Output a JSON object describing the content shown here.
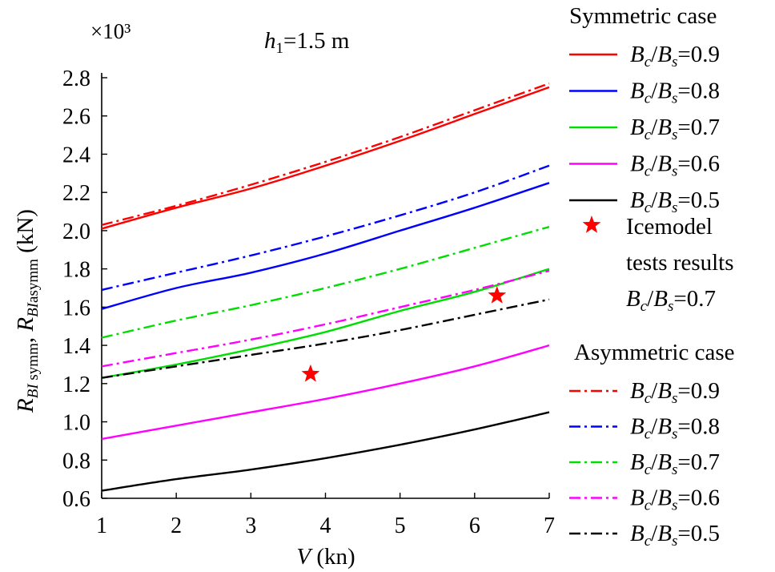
{
  "chart_data": {
    "type": "line",
    "title": "h1=1.5 m",
    "title_parts": {
      "sym": "h",
      "sub": "1",
      "rest": "=1.5 m"
    },
    "scale_label": "×10³",
    "xlabel": "V (kn)",
    "xlabel_parts": {
      "var": "V",
      "unit": " (kn)"
    },
    "ylabel": "R_BI symm, R_BI asymm (kN)",
    "ylabel_parts": {
      "r1": "R",
      "sub1": "BI",
      "sub1b": " symm",
      "comma": ", ",
      "r2": "R",
      "sub2": "BI",
      "sub2b": "asymm",
      "unit": " (kN)"
    },
    "xlim": [
      1,
      7
    ],
    "ylim": [
      0.6,
      2.8
    ],
    "xticks": [
      "1",
      "2",
      "3",
      "4",
      "5",
      "6",
      "7"
    ],
    "yticks": [
      "0.6",
      "0.8",
      "1.0",
      "1.2",
      "1.4",
      "1.6",
      "1.8",
      "2.0",
      "2.2",
      "2.4",
      "2.6",
      "2.8"
    ],
    "x": [
      1,
      2,
      3,
      4,
      5,
      6,
      7
    ],
    "series": [
      {
        "name": "Symmetric Bc/Bs=0.9",
        "group": "symmetric",
        "ratio": "0.9",
        "color": "#ff0000",
        "dash": "solid",
        "values": [
          2.01,
          2.12,
          2.22,
          2.34,
          2.47,
          2.61,
          2.75
        ]
      },
      {
        "name": "Symmetric Bc/Bs=0.8",
        "group": "symmetric",
        "ratio": "0.8",
        "color": "#0000ff",
        "dash": "solid",
        "values": [
          1.59,
          1.7,
          1.78,
          1.88,
          2.0,
          2.12,
          2.25
        ]
      },
      {
        "name": "Symmetric Bc/Bs=0.7",
        "group": "symmetric",
        "ratio": "0.7",
        "color": "#00dd00",
        "dash": "solid",
        "values": [
          1.23,
          1.3,
          1.38,
          1.47,
          1.58,
          1.68,
          1.8
        ]
      },
      {
        "name": "Symmetric Bc/Bs=0.6",
        "group": "symmetric",
        "ratio": "0.6",
        "color": "#ff00ff",
        "dash": "solid",
        "values": [
          0.91,
          0.98,
          1.05,
          1.12,
          1.2,
          1.29,
          1.4
        ]
      },
      {
        "name": "Symmetric Bc/Bs=0.5",
        "group": "symmetric",
        "ratio": "0.5",
        "color": "#000000",
        "dash": "solid",
        "values": [
          0.64,
          0.7,
          0.75,
          0.81,
          0.88,
          0.96,
          1.05
        ]
      },
      {
        "name": "Asymmetric Bc/Bs=0.9",
        "group": "asymmetric",
        "ratio": "0.9",
        "color": "#ff0000",
        "dash": "dashdot",
        "values": [
          2.03,
          2.13,
          2.24,
          2.36,
          2.49,
          2.63,
          2.77
        ]
      },
      {
        "name": "Asymmetric Bc/Bs=0.8",
        "group": "asymmetric",
        "ratio": "0.8",
        "color": "#0000ff",
        "dash": "dashdot",
        "values": [
          1.69,
          1.78,
          1.87,
          1.97,
          2.08,
          2.2,
          2.34
        ]
      },
      {
        "name": "Asymmetric Bc/Bs=0.7",
        "group": "asymmetric",
        "ratio": "0.7",
        "color": "#00dd00",
        "dash": "dashdot",
        "values": [
          1.44,
          1.53,
          1.61,
          1.7,
          1.8,
          1.91,
          2.02
        ]
      },
      {
        "name": "Asymmetric Bc/Bs=0.6",
        "group": "asymmetric",
        "ratio": "0.6",
        "color": "#ff00ff",
        "dash": "dashdot",
        "values": [
          1.29,
          1.36,
          1.43,
          1.51,
          1.6,
          1.69,
          1.79
        ]
      },
      {
        "name": "Asymmetric Bc/Bs=0.5",
        "group": "asymmetric",
        "ratio": "0.5",
        "color": "#000000",
        "dash": "dashdot",
        "values": [
          1.23,
          1.29,
          1.35,
          1.41,
          1.48,
          1.56,
          1.64
        ]
      }
    ],
    "scatter": {
      "name": "Icemodel tests results Bc/Bs=0.7",
      "color": "#ff0000",
      "marker": "star",
      "points": [
        {
          "x": 3.8,
          "y": 1.25
        },
        {
          "x": 6.3,
          "y": 1.66
        }
      ]
    },
    "legend": {
      "placement": "right",
      "symmetric_title": "Symmetric case",
      "asymmetric_title": "Asymmetric case",
      "entry_parts": {
        "b1": "B",
        "s1": "c",
        "slash": "/",
        "b2": "B",
        "s2": "s",
        "eq": "="
      },
      "ice_lines": [
        "Icemodel",
        "tests results"
      ],
      "ice_ratio": "0.7"
    }
  }
}
